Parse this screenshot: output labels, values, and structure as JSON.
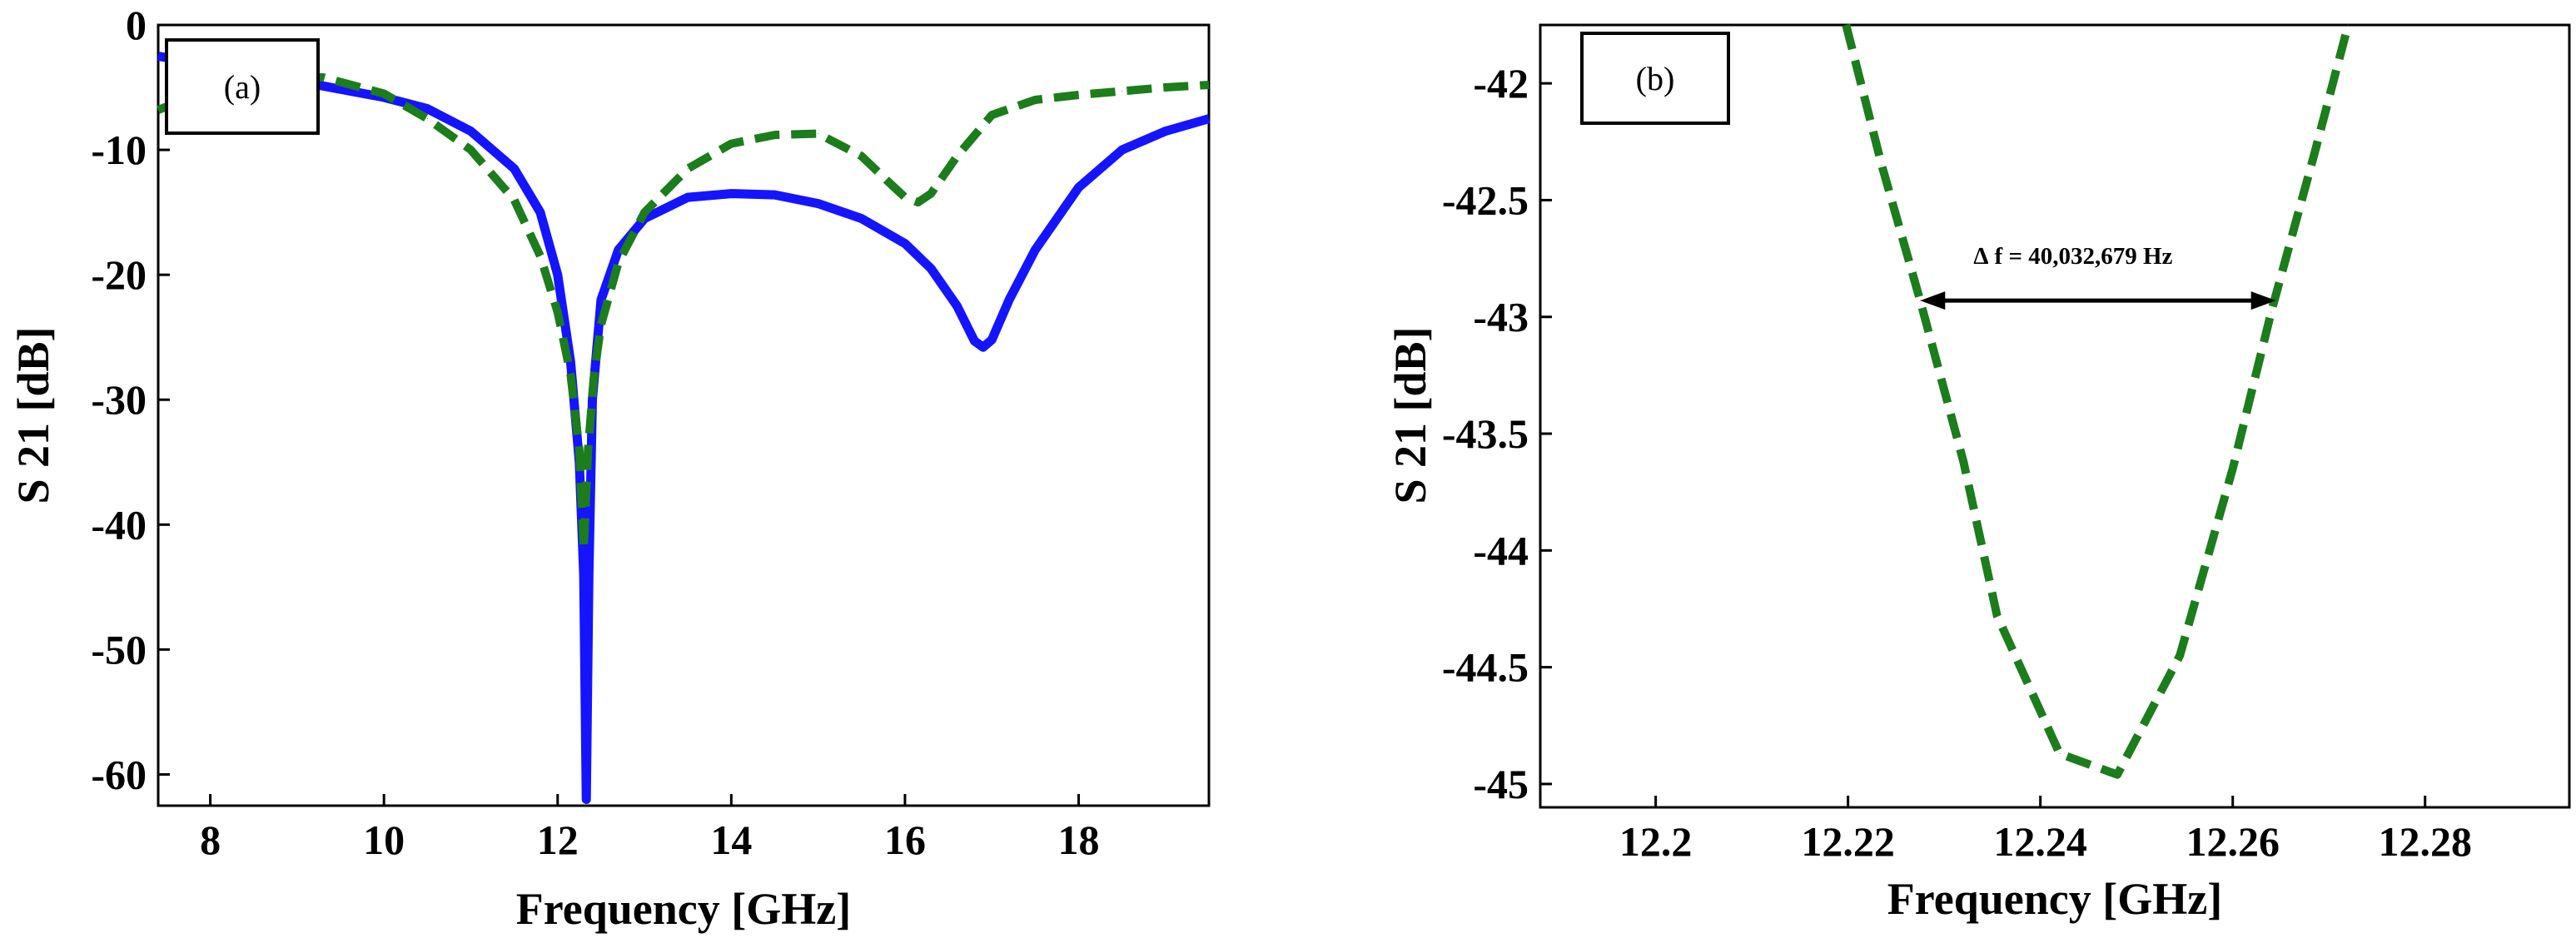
{
  "chart_data": [
    {
      "type": "line",
      "panel_label": "(a)",
      "xlabel": "Frequency [GHz]",
      "ylabel": "S 21 [dB]",
      "xlim": [
        7.4,
        19.5
      ],
      "ylim": [
        -62.5,
        0
      ],
      "xticks": [
        8,
        10,
        12,
        14,
        16,
        18
      ],
      "xtick_labels": [
        "8",
        "10",
        "12",
        "14",
        "16",
        "18"
      ],
      "yticks": [
        0,
        -10,
        -20,
        -30,
        -40,
        -50,
        -60
      ],
      "ytick_labels": [
        "0",
        "-10",
        "-20",
        "-30",
        "-40",
        "-50",
        "-60"
      ],
      "colors": {
        "blue": "#1414ff",
        "green": "#1b7d1b"
      },
      "series": [
        {
          "name": "solid blue",
          "color": "blue",
          "style": "solid",
          "x": [
            7.4,
            8.0,
            9.0,
            10.0,
            10.5,
            11.0,
            11.5,
            11.8,
            12.0,
            12.15,
            12.25,
            12.3,
            12.33,
            12.36,
            12.4,
            12.5,
            12.7,
            13.0,
            13.5,
            14.0,
            14.5,
            15.0,
            15.5,
            16.0,
            16.3,
            16.6,
            16.8,
            16.9,
            17.0,
            17.2,
            17.5,
            18.0,
            18.5,
            19.0,
            19.5
          ],
          "y": [
            -2.5,
            -3.2,
            -4.5,
            -5.8,
            -6.7,
            -8.5,
            -11.5,
            -15,
            -20,
            -27,
            -35,
            -44,
            -62,
            -44,
            -30,
            -22,
            -18,
            -15.5,
            -13.8,
            -13.5,
            -13.6,
            -14.3,
            -15.5,
            -17.5,
            -19.5,
            -22.5,
            -25.3,
            -25.8,
            -25.2,
            -22,
            -18,
            -13,
            -10,
            -8.5,
            -7.5
          ]
        },
        {
          "name": "dashed green",
          "color": "green",
          "style": "dashed",
          "x": [
            7.4,
            8.0,
            8.7,
            9.3,
            10.0,
            10.5,
            11.0,
            11.5,
            11.8,
            12.0,
            12.15,
            12.25,
            12.3,
            12.35,
            12.42,
            12.5,
            12.7,
            13.0,
            13.5,
            14.0,
            14.5,
            15.0,
            15.5,
            15.8,
            16.0,
            16.15,
            16.3,
            16.6,
            17.0,
            17.5,
            18.0,
            18.5,
            19.0,
            19.5
          ],
          "y": [
            -6.8,
            -5.2,
            -4.2,
            -4.2,
            -5.5,
            -7.5,
            -10,
            -14,
            -18.5,
            -23,
            -28,
            -34,
            -42,
            -34,
            -28,
            -24,
            -19,
            -15,
            -11.5,
            -9.5,
            -8.8,
            -8.7,
            -10.5,
            -12.5,
            -13.8,
            -14.2,
            -13.5,
            -10.5,
            -7.2,
            -6.0,
            -5.6,
            -5.3,
            -5.0,
            -4.8
          ]
        }
      ]
    },
    {
      "type": "line",
      "panel_label": "(b)",
      "xlabel": "Frequency [GHz]",
      "ylabel": "S 21 [dB]",
      "xlim": [
        12.188,
        12.295
      ],
      "ylim": [
        -45.1,
        -41.75
      ],
      "xticks": [
        12.2,
        12.22,
        12.24,
        12.26,
        12.28
      ],
      "xtick_labels": [
        "12.2",
        "12.22",
        "12.24",
        "12.26",
        "12.28"
      ],
      "yticks": [
        -42,
        -42.5,
        -43,
        -43.5,
        -44,
        -44.5,
        -45
      ],
      "ytick_labels": [
        "-42",
        "-42.5",
        "-43",
        "-43.5",
        "-44",
        "-44.5",
        "-45"
      ],
      "annotation": {
        "text": "∆ f = 40,032,679 Hz",
        "x_start": 12.2275,
        "x_end": 12.2645,
        "y": -42.93
      },
      "series": [
        {
          "name": "dashed green",
          "color": "green",
          "style": "dashed",
          "x": [
            12.2198,
            12.2235,
            12.2275,
            12.232,
            12.2355,
            12.242,
            12.248,
            12.2545,
            12.26,
            12.264,
            12.2685,
            12.272
          ],
          "y": [
            -41.75,
            -42.35,
            -42.93,
            -43.62,
            -44.28,
            -44.87,
            -44.96,
            -44.45,
            -43.65,
            -42.98,
            -42.3,
            -41.75
          ]
        }
      ]
    }
  ]
}
